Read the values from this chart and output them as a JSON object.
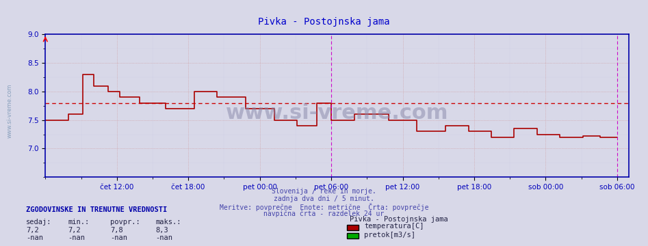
{
  "title": "Pivka - Postojnska jama",
  "title_color": "#0000cc",
  "bg_color": "#d8d8e8",
  "plot_bg_color": "#d8d8e8",
  "line_color": "#aa0000",
  "avg_line_color": "#cc0000",
  "avg_value": 7.8,
  "ylim": [
    6.5,
    9.0
  ],
  "yticks": [
    8.0,
    8.0
  ],
  "xlabel_color": "#0000bb",
  "grid_color_major": "#cc8888",
  "grid_color_minor": "#aaaacc",
  "xtick_labels": [
    "čet 12:00",
    "čet 18:00",
    "pet 00:00",
    "pet 06:00",
    "pet 12:00",
    "pet 18:00",
    "sob 00:00",
    "sob 06:00"
  ],
  "xtick_positions": [
    0.125,
    0.25,
    0.375,
    0.5,
    0.625,
    0.75,
    0.875,
    1.0
  ],
  "vline_positions": [
    0.5,
    1.0
  ],
  "vline_color": "#cc00cc",
  "watermark": "www.si-vreme.com",
  "watermark_color": "#8888aa",
  "footer_lines": [
    "Slovenija / reke in morje.",
    "zadnja dva dni / 5 minut.",
    "Meritve: povprečne  Enote: metrične  Črta: povprečje",
    "navpična črta - razdelek 24 ur"
  ],
  "footer_color": "#4444aa",
  "left_label": "www.si-vreme.com",
  "left_label_color": "#6688aa",
  "legend_title": "Pivka - Postojnska jama",
  "legend_items": [
    {
      "label": "temperatura[C]",
      "color": "#aa0000"
    },
    {
      "label": "pretok[m3/s]",
      "color": "#00aa00"
    }
  ],
  "stats_header": "ZGODOVINSKE IN TRENUTNE VREDNOSTI",
  "stats_cols": [
    "sedaj:",
    "min.:",
    "povpr.:",
    "maks.:"
  ],
  "stats_temp": [
    "7,2",
    "7,2",
    "7,8",
    "8,3"
  ],
  "stats_pretok": [
    "-nan",
    "-nan",
    "-nan",
    "-nan"
  ],
  "temp_data_x": [
    0.0,
    0.04,
    0.04,
    0.065,
    0.065,
    0.085,
    0.085,
    0.11,
    0.11,
    0.13,
    0.13,
    0.165,
    0.165,
    0.21,
    0.21,
    0.26,
    0.26,
    0.3,
    0.3,
    0.35,
    0.35,
    0.4,
    0.4,
    0.44,
    0.44,
    0.475,
    0.475,
    0.5,
    0.5,
    0.54,
    0.54,
    0.6,
    0.6,
    0.65,
    0.65,
    0.7,
    0.7,
    0.74,
    0.74,
    0.78,
    0.78,
    0.82,
    0.82,
    0.86,
    0.86,
    0.9,
    0.9,
    0.94,
    0.94,
    0.97,
    0.97,
    1.0
  ],
  "temp_data_y": [
    7.5,
    7.5,
    7.6,
    7.6,
    8.3,
    8.3,
    8.1,
    8.1,
    8.0,
    8.0,
    7.9,
    7.9,
    7.8,
    7.8,
    7.7,
    7.7,
    8.0,
    8.0,
    7.9,
    7.9,
    7.7,
    7.7,
    7.5,
    7.5,
    7.4,
    7.4,
    7.8,
    7.8,
    7.5,
    7.5,
    7.6,
    7.6,
    7.5,
    7.5,
    7.3,
    7.3,
    7.4,
    7.4,
    7.3,
    7.3,
    7.2,
    7.2,
    7.35,
    7.35,
    7.25,
    7.25,
    7.2,
    7.2,
    7.22,
    7.22,
    7.2,
    7.2
  ]
}
